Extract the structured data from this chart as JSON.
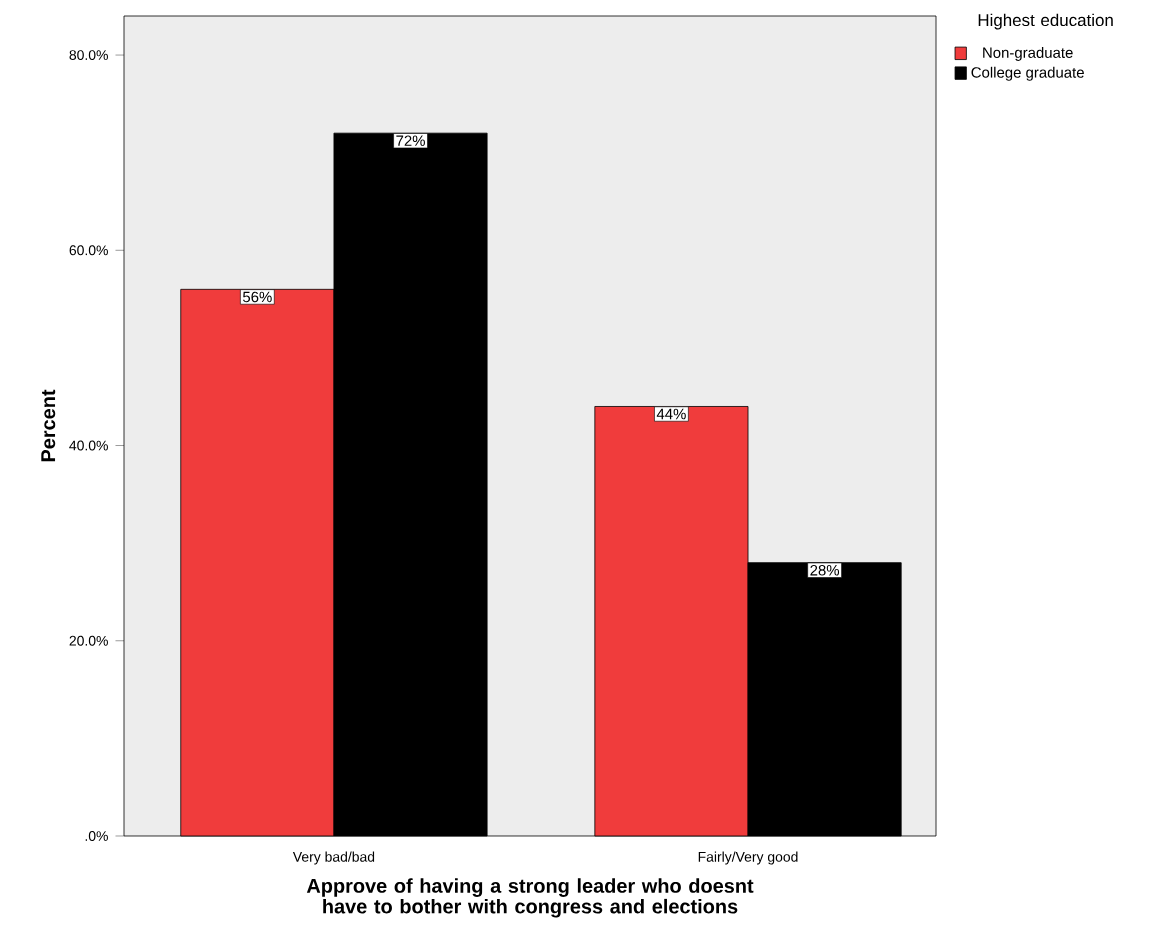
{
  "chart_data": {
    "type": "bar",
    "xlabel": "Approve of having a strong leader who doesnt have to bother with congress and elections",
    "ylabel": "Percent",
    "legend_title": "Highest education",
    "legend": "top right",
    "categories": [
      "Very bad/bad",
      "Fairly/Very good"
    ],
    "series": [
      {
        "name": "Non-graduate",
        "color": "#f03c3c",
        "values": [
          56,
          44
        ],
        "value_labels": [
          "56%",
          "44%"
        ]
      },
      {
        "name": "College graduate",
        "color": "#000000",
        "values": [
          72,
          28
        ],
        "value_labels": [
          "72%",
          "28%"
        ]
      }
    ],
    "ylim": [
      0,
      84
    ],
    "yticks": [
      {
        "value": 0,
        "label": ".0%"
      },
      {
        "value": 20,
        "label": "20.0%"
      },
      {
        "value": 40,
        "label": "40.0%"
      },
      {
        "value": 60,
        "label": "60.0%"
      },
      {
        "value": 80,
        "label": "80.0%"
      }
    ]
  }
}
